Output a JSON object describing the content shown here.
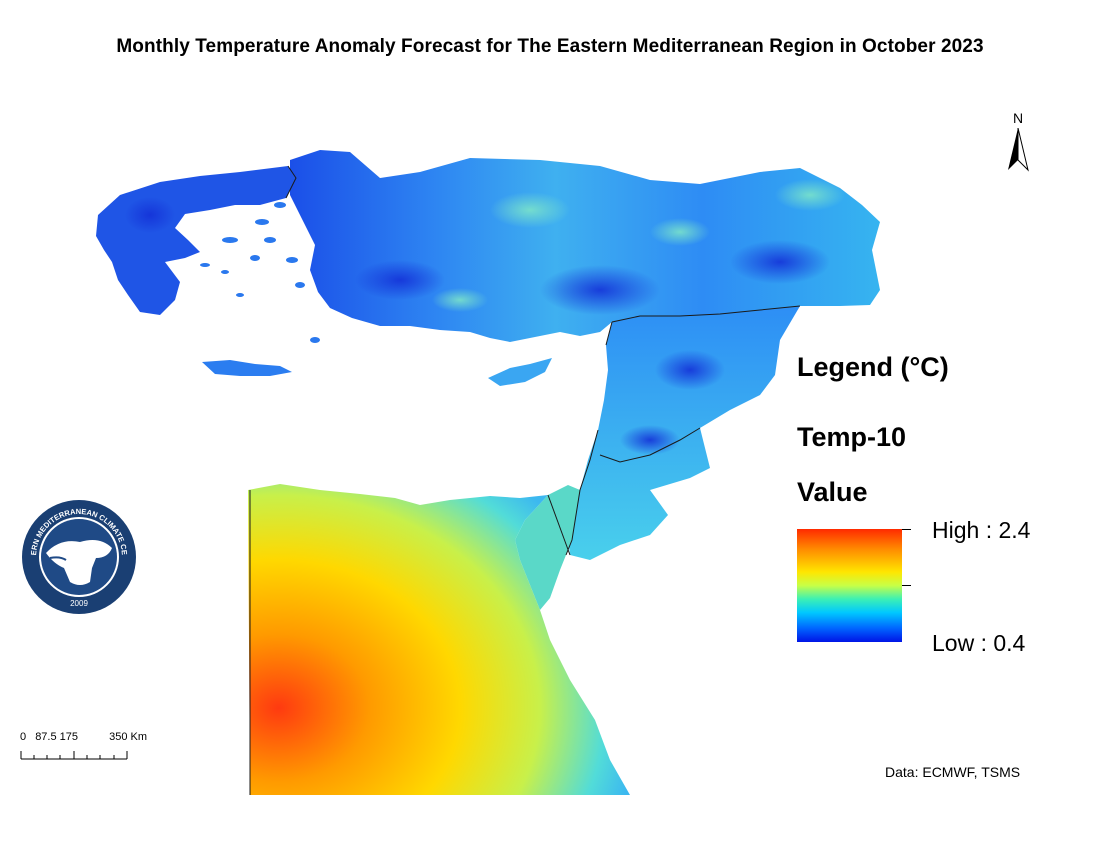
{
  "title": "Monthly Temperature Anomaly Forecast for The Eastern Mediterranean Region in October 2023",
  "north_arrow": {
    "label": "N",
    "icon": "north-arrow-icon"
  },
  "legend": {
    "title": "Legend (°C)",
    "layer": "Temp-10",
    "field": "Value",
    "high_label": "High : 2.4",
    "low_label": "Low : 0.4",
    "high_value": 2.4,
    "low_value": 0.4,
    "colors": [
      "#ff2a00",
      "#ff8c00",
      "#ffe600",
      "#3cf0b4",
      "#00c8ff",
      "#0064ff",
      "#0014e6"
    ]
  },
  "scale_bar": {
    "labels": [
      "0",
      "87.5",
      "175",
      "350 Km"
    ],
    "unit": "Km"
  },
  "credit": "Data: ECMWF, TSMS",
  "logo": {
    "text_ring": "EASTERN MEDITERRANEAN CLIMATE CENTRE",
    "year": "2009",
    "colors": {
      "ring": "#1a3f73",
      "fill": "#ffffff"
    }
  },
  "regions": {
    "anatolia_greece": {
      "anomaly_level": "low",
      "colors": [
        "#1e5cff",
        "#2a9df5",
        "#5fd0e8"
      ]
    },
    "levant": {
      "anomaly_level": "low",
      "colors": [
        "#2aa0f0",
        "#3cc8f0"
      ]
    },
    "egypt_sinai": {
      "anomaly_level": "high",
      "colors": [
        "#ff4a10",
        "#ffcc00",
        "#d8f040",
        "#40d8e0"
      ]
    }
  }
}
